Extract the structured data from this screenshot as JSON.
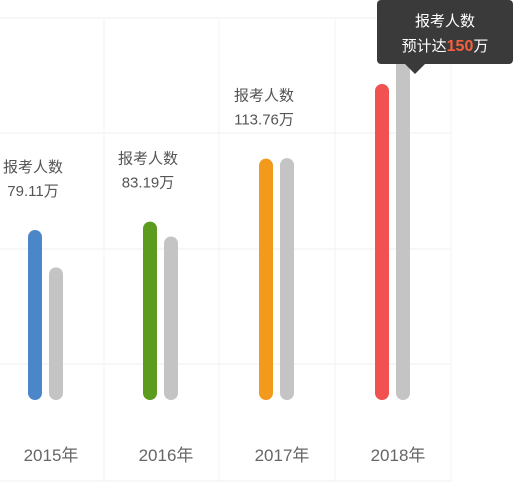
{
  "chart_data": {
    "type": "bar",
    "categories": [
      "2015年",
      "2016年",
      "2017年",
      "2018年"
    ],
    "series": [
      {
        "values": [
          79.11,
          83.19,
          113.76,
          150
        ],
        "colors": [
          "#4a86c8",
          "#5b9b1e",
          "#f29a1c",
          "#f25151"
        ]
      },
      {
        "values": [
          61,
          76,
          114,
          167
        ],
        "color": "#c5c4c4"
      }
    ],
    "data_labels": [
      {
        "title": "报考人数",
        "value": "79.11万"
      },
      {
        "title": "报考人数",
        "value": "83.19万"
      },
      {
        "title": "报考人数",
        "value": "113.76万"
      },
      null
    ],
    "grid": true
  },
  "tooltip": {
    "title": "报考人数",
    "prefix": "预计达",
    "value": "150",
    "unit": "万"
  }
}
